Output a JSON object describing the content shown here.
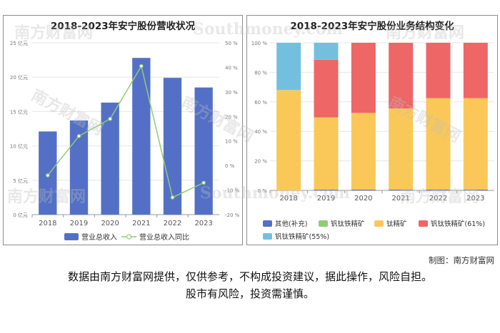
{
  "chart_data": [
    {
      "type": "bar+line",
      "title": "2018-2023年安宁股份营收状况",
      "categories": [
        "2018",
        "2019",
        "2020",
        "2021",
        "2022",
        "2023"
      ],
      "series": [
        {
          "name": "营业总收入",
          "kind": "bar",
          "axis": "left",
          "color": "#5470c6",
          "values": [
            12.1,
            13.7,
            16.3,
            22.8,
            19.9,
            18.5
          ]
        },
        {
          "name": "营业总收入同比",
          "kind": "line",
          "axis": "right",
          "color": "#91cc75",
          "values": [
            -4.0,
            12.0,
            19.0,
            40.5,
            -13.0,
            -7.0
          ]
        }
      ],
      "left_axis": {
        "ylim": [
          0,
          25
        ],
        "ticks": [
          0,
          5,
          10,
          15,
          20,
          25
        ],
        "unit": "亿元"
      },
      "right_axis": {
        "ylim": [
          -20,
          50
        ],
        "ticks": [
          -20,
          -10,
          0,
          10,
          20,
          30,
          40,
          50
        ],
        "unit": "%"
      },
      "legend": [
        "营业总收入",
        "营业总收入同比"
      ],
      "legend_position": "bottom"
    },
    {
      "type": "stacked-bar",
      "title": "2018-2023年安宁股份业务结构变化",
      "categories": [
        "2018",
        "2019",
        "2020",
        "2021",
        "2022",
        "2023"
      ],
      "series": [
        {
          "name": "其他(补充)",
          "color": "#5470c6",
          "values": [
            0,
            0.5,
            0.5,
            0.5,
            0.5,
            0.5
          ]
        },
        {
          "name": "钒钛铁精矿",
          "color": "#91cc75",
          "values": [
            0,
            0,
            0,
            0,
            0,
            0
          ]
        },
        {
          "name": "钛精矿",
          "color": "#fac858",
          "values": [
            68,
            49,
            52,
            55,
            62,
            62
          ]
        },
        {
          "name": "钒钛铁精矿(61%)",
          "color": "#ee6666",
          "values": [
            0,
            39,
            47.5,
            44.5,
            37.5,
            37.5
          ]
        },
        {
          "name": "钒钛铁精矿(55%)",
          "color": "#73c0de",
          "values": [
            32,
            11.5,
            0,
            0,
            0,
            0
          ]
        }
      ],
      "ylim": [
        0,
        100
      ],
      "ticks": [
        0,
        20,
        40,
        60,
        80,
        100
      ],
      "unit": "%",
      "legend_position": "bottom"
    }
  ],
  "watermark": {
    "cn": "南方财富网",
    "en": "Southmoney.com"
  },
  "footer": {
    "credit": "制图：南方财富网",
    "disclaimer_line1": "数据由南方财富网提供，仅供参考，不构成投资建议，据此操作，风险自担。",
    "disclaimer_line2": "股市有风险，投资需谨慎。"
  }
}
